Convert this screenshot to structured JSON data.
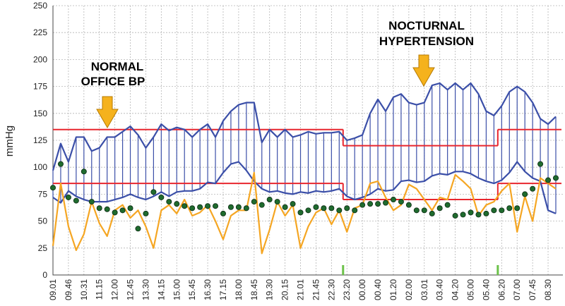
{
  "chart_data": {
    "type": "abpm",
    "y_label": "mmHg",
    "ylim": [
      0,
      250
    ],
    "yticks": [
      0,
      25,
      50,
      75,
      100,
      125,
      150,
      175,
      200,
      225,
      250
    ],
    "grid": true,
    "categories": [
      "09.01",
      null,
      "09.46",
      null,
      "10.31",
      null,
      "11.15",
      null,
      "12.00",
      null,
      "12.45",
      null,
      "13.30",
      null,
      "14.15",
      null,
      "15.00",
      null,
      "15.45",
      null,
      "16.30",
      null,
      "17.15",
      null,
      "18.00",
      null,
      "18.45",
      null,
      "19.30",
      null,
      "20.15",
      null,
      "21.01",
      null,
      "21.45",
      null,
      "22.30",
      null,
      "23.20",
      null,
      "00.00",
      null,
      "00.40",
      null,
      "01.20",
      null,
      "02.00",
      null,
      "03.01",
      null,
      "03.40",
      null,
      "04.20",
      null,
      "05.00",
      null,
      "05.40",
      null,
      "06.20",
      null,
      "07.00",
      null,
      "07.45",
      null,
      "08.30",
      null
    ],
    "series": [
      {
        "color": "#3b4fa8",
        "values": [
          97,
          122,
          105,
          128,
          128,
          115,
          118,
          128,
          128,
          133,
          138,
          130,
          118,
          128,
          140,
          134,
          137,
          135,
          128,
          135,
          140,
          128,
          143,
          152,
          158,
          160,
          160,
          123,
          135,
          128,
          135,
          128,
          130,
          133,
          131,
          132,
          132,
          133,
          125,
          127,
          130,
          150,
          163,
          152,
          165,
          168,
          160,
          158,
          160,
          176,
          178,
          172,
          178,
          172,
          178,
          168,
          152,
          148,
          157,
          170,
          175,
          170,
          160,
          145,
          140,
          147
        ]
      },
      {
        "color": "#3b4fa8",
        "values": [
          72,
          67,
          78,
          73,
          70,
          68,
          68,
          68,
          70,
          72,
          75,
          72,
          70,
          73,
          77,
          73,
          77,
          78,
          78,
          80,
          86,
          85,
          95,
          103,
          105,
          97,
          87,
          80,
          77,
          78,
          76,
          75,
          77,
          76,
          78,
          77,
          78,
          80,
          73,
          70,
          72,
          75,
          80,
          78,
          79,
          87,
          88,
          86,
          87,
          92,
          94,
          93,
          96,
          96,
          94,
          90,
          87,
          85,
          88,
          95,
          105,
          96,
          90,
          87,
          60,
          57
        ]
      },
      {
        "color": "#f5a623",
        "values": [
          27,
          85,
          45,
          23,
          38,
          68,
          48,
          36,
          60,
          65,
          53,
          60,
          45,
          25,
          60,
          65,
          57,
          70,
          55,
          58,
          65,
          50,
          33,
          55,
          60,
          60,
          95,
          20,
          42,
          68,
          55,
          65,
          25,
          45,
          58,
          62,
          47,
          60,
          40,
          62,
          65,
          85,
          87,
          72,
          60,
          65,
          84,
          80,
          70,
          60,
          72,
          70,
          93,
          87,
          80,
          55,
          65,
          68,
          78,
          85,
          40,
          73,
          50,
          90,
          85,
          80
        ]
      },
      {
        "color": "#1f6b2e",
        "values": [
          81,
          103,
          72,
          69,
          96,
          68,
          62,
          61,
          58,
          60,
          62,
          43,
          57,
          77,
          72,
          68,
          66,
          64,
          62,
          63,
          64,
          64,
          57,
          63,
          63,
          62,
          68,
          65,
          70,
          68,
          63,
          66,
          58,
          60,
          63,
          62,
          62,
          60,
          62,
          60,
          65,
          66,
          66,
          67,
          70,
          68,
          65,
          60,
          60,
          57,
          62,
          65,
          55,
          56,
          58,
          56,
          57,
          60,
          60,
          62,
          62,
          75,
          80,
          103,
          88,
          90
        ]
      }
    ],
    "thresholds": [
      {
        "from": 0,
        "to": 38,
        "systolic": 135,
        "diastolic": 85
      },
      {
        "from": 38,
        "to": 58,
        "systolic": 120,
        "diastolic": 70
      },
      {
        "from": 58,
        "to": 65,
        "systolic": 135,
        "diastolic": 85
      }
    ],
    "threshold_color": "#e8262e",
    "annotations": [
      {
        "lines": [
          "NORMAL",
          "OFFICE BP"
        ]
      },
      {
        "lines": [
          "NOCTURNAL",
          "HYPERTENSION"
        ]
      }
    ]
  }
}
